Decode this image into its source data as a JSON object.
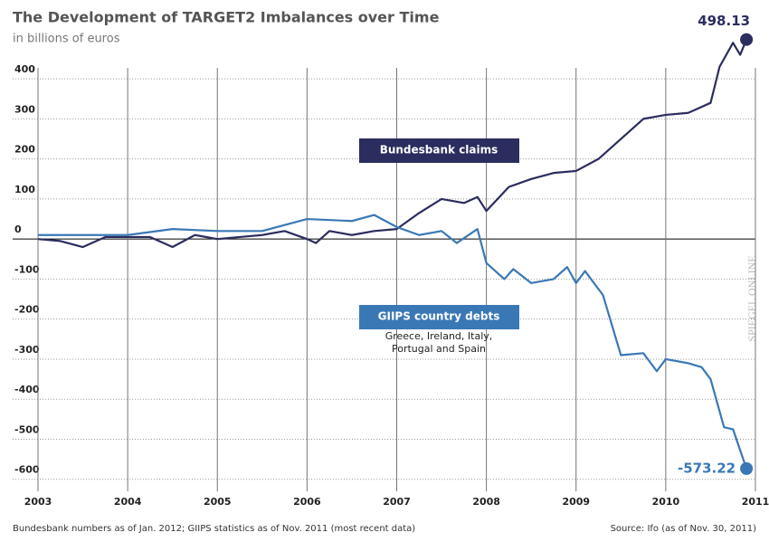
{
  "chart_data": {
    "type": "line",
    "title": "The Development of TARGET2 Imbalances over Time",
    "subtitle": "in billions of euros",
    "xlim": [
      2003,
      2011
    ],
    "xticks": [
      2003,
      2004,
      2005,
      2006,
      2007,
      2008,
      2009,
      2010,
      2011
    ],
    "ylim": [
      -630,
      450
    ],
    "yticks": [
      400,
      300,
      200,
      100,
      0,
      -100,
      -200,
      -300,
      -400,
      -500,
      -600
    ],
    "grid": true,
    "series": [
      {
        "name": "Bundesbank claims",
        "color": "#2b2d5e",
        "x": [
          2003,
          2003.25,
          2003.5,
          2003.75,
          2004,
          2004.25,
          2004.5,
          2004.75,
          2005,
          2005.25,
          2005.5,
          2005.75,
          2006,
          2006.1,
          2006.25,
          2006.5,
          2006.75,
          2007,
          2007.25,
          2007.5,
          2007.75,
          2007.9,
          2008,
          2008.25,
          2008.5,
          2008.75,
          2009,
          2009.25,
          2009.5,
          2009.75,
          2010,
          2010.25,
          2010.5,
          2010.6,
          2010.75,
          2010.83,
          2010.9
        ],
        "values": [
          0,
          -5,
          -20,
          5,
          5,
          5,
          -20,
          10,
          0,
          5,
          10,
          20,
          0,
          -10,
          20,
          10,
          20,
          25,
          65,
          100,
          90,
          105,
          70,
          130,
          150,
          165,
          170,
          200,
          250,
          300,
          310,
          315,
          340,
          430,
          490,
          460,
          498.13
        ]
      },
      {
        "name": "GIIPS country debts",
        "color": "#3a78b5",
        "x": [
          2003,
          2003.5,
          2004,
          2004.5,
          2005,
          2005.5,
          2006,
          2006.5,
          2006.75,
          2007,
          2007.25,
          2007.5,
          2007.67,
          2007.9,
          2008,
          2008.2,
          2008.3,
          2008.5,
          2008.75,
          2008.9,
          2009,
          2009.1,
          2009.3,
          2009.5,
          2009.75,
          2009.9,
          2010,
          2010.25,
          2010.4,
          2010.5,
          2010.65,
          2010.75,
          2010.9
        ],
        "values": [
          10,
          10,
          10,
          25,
          20,
          20,
          50,
          45,
          60,
          30,
          10,
          20,
          -10,
          25,
          -60,
          -100,
          -75,
          -110,
          -100,
          -70,
          -110,
          -80,
          -140,
          -290,
          -285,
          -330,
          -300,
          -310,
          -320,
          -350,
          -470,
          -475,
          -573.22
        ]
      }
    ],
    "annotations": [
      "Greece, Ireland, Italy,",
      "Portugal and Spain"
    ],
    "footnote": "Bundesbank numbers as of Jan. 2012; GIIPS statistics as of Nov. 2011 (most recent data)",
    "source": "Source: Ifo (as of Nov. 30, 2011)",
    "watermark": "SPIEGEL ONLINE"
  }
}
